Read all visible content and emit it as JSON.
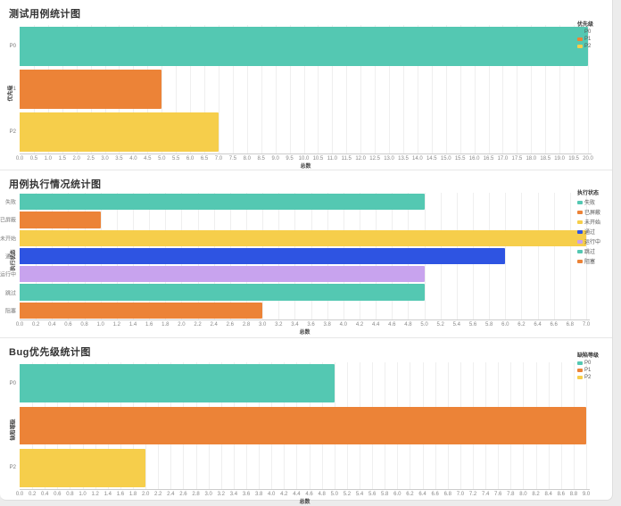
{
  "page": {
    "background": "#ececec",
    "panel_background": "#ffffff"
  },
  "palette": {
    "teal": "#54c8b2",
    "orange": "#ec8337",
    "yellow": "#f6ce4b",
    "blue": "#2e54e2",
    "purple": "#c8a3ee"
  },
  "chart_data": [
    {
      "type": "bar",
      "orientation": "horizontal",
      "title": "测试用例统计图",
      "xlabel": "总数",
      "ylabel": "优先级",
      "legend_title": "优先级",
      "legend_position": "top-right",
      "grid": true,
      "categories": [
        "P0",
        "P1",
        "P2"
      ],
      "values": [
        20,
        5,
        7
      ],
      "colors": [
        "#54c8b2",
        "#ec8337",
        "#f6ce4b"
      ],
      "xlim": [
        0,
        20
      ],
      "x_step": 0.5
    },
    {
      "type": "bar",
      "orientation": "horizontal",
      "title": "用例执行情况统计图",
      "xlabel": "总数",
      "ylabel": "执行状态",
      "legend_title": "执行状态",
      "legend_position": "top-right",
      "grid": true,
      "categories": [
        "失败",
        "已屏蔽",
        "未开始",
        "通过",
        "运行中",
        "跳过",
        "阻塞"
      ],
      "values": [
        5,
        1,
        7,
        6,
        5,
        5,
        3
      ],
      "colors": [
        "#54c8b2",
        "#ec8337",
        "#f6ce4b",
        "#2e54e2",
        "#c8a3ee",
        "#54c8b2",
        "#ec8337"
      ],
      "xlim": [
        0,
        7
      ],
      "x_step": 0.2
    },
    {
      "type": "bar",
      "orientation": "horizontal",
      "title": "Bug优先级统计图",
      "xlabel": "总数",
      "ylabel": "缺陷等级",
      "legend_title": "缺陷等级",
      "legend_position": "top-right",
      "grid": true,
      "categories": [
        "P0",
        "P1",
        "P2"
      ],
      "values": [
        5,
        9,
        2
      ],
      "colors": [
        "#54c8b2",
        "#ec8337",
        "#f6ce4b"
      ],
      "xlim": [
        0,
        9
      ],
      "x_step": 0.2
    }
  ]
}
